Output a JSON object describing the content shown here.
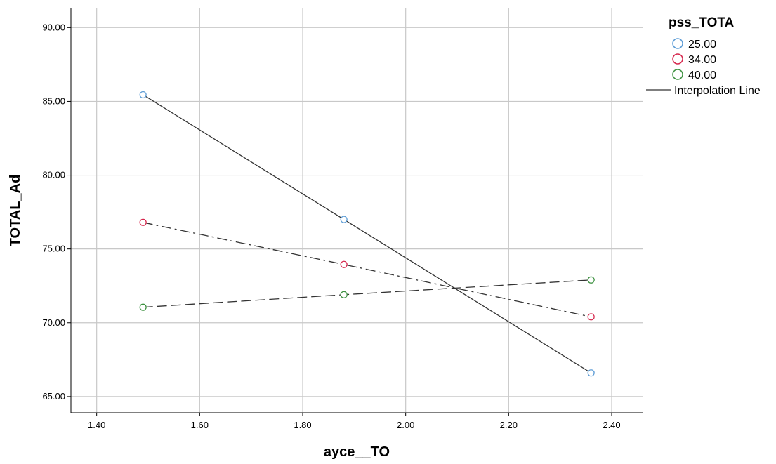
{
  "chart_data": {
    "type": "line",
    "xlabel": "ayce__TO",
    "ylabel": "TOTAL_Ad",
    "xlim": [
      1.35,
      2.46
    ],
    "ylim": [
      63.9,
      91.3
    ],
    "xticks": [
      1.4,
      1.6,
      1.8,
      2.0,
      2.2,
      2.4
    ],
    "xtick_labels": [
      "1.40",
      "1.60",
      "1.80",
      "2.00",
      "2.20",
      "2.40"
    ],
    "yticks": [
      65,
      70,
      75,
      80,
      85,
      90
    ],
    "ytick_labels": [
      "65.00",
      "70.00",
      "75.00",
      "80.00",
      "85.00",
      "90.00"
    ],
    "grid": true,
    "legend": {
      "title": "pss_TOTA",
      "position": "right",
      "line_label": "Interpolation Line"
    },
    "series": [
      {
        "name": "25.00",
        "color": "#5b9bd5",
        "line_style": "solid",
        "x": [
          1.49,
          1.88,
          2.36
        ],
        "y": [
          85.45,
          77.0,
          66.6
        ]
      },
      {
        "name": "34.00",
        "color": "#d6274d",
        "line_style": "dashdot",
        "x": [
          1.49,
          1.88,
          2.36
        ],
        "y": [
          76.8,
          73.95,
          70.4
        ]
      },
      {
        "name": "40.00",
        "color": "#3d9140",
        "line_style": "dashed",
        "x": [
          1.49,
          1.88,
          2.36
        ],
        "y": [
          71.05,
          71.9,
          72.9
        ]
      }
    ]
  }
}
